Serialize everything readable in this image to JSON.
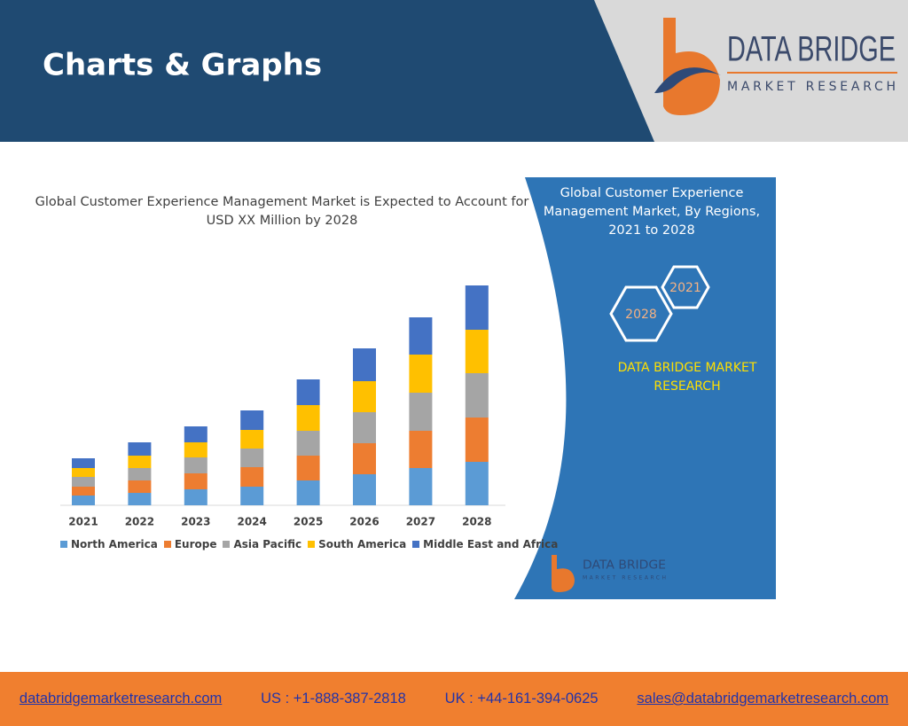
{
  "header": {
    "title": "Charts & Graphs",
    "logo_name": "DATA BRIDGE",
    "logo_tagline": "MARKET RESEARCH"
  },
  "chart_data": {
    "type": "bar",
    "stacked": true,
    "title": "Global Customer Experience Management Market is Expected to Account for USD XX Million by 2028",
    "categories": [
      "2021",
      "2022",
      "2023",
      "2024",
      "2025",
      "2026",
      "2027",
      "2028"
    ],
    "series": [
      {
        "name": "North America",
        "color": "#5b9bd5",
        "values": [
          11,
          14,
          18,
          21,
          28,
          35,
          42,
          49
        ]
      },
      {
        "name": "Europe",
        "color": "#ed7d31",
        "values": [
          10,
          14,
          18,
          22,
          28,
          35,
          42,
          50
        ]
      },
      {
        "name": "Asia Pacific",
        "color": "#a5a5a5",
        "values": [
          11,
          14,
          18,
          21,
          28,
          35,
          43,
          50
        ]
      },
      {
        "name": "South America",
        "color": "#ffc000",
        "values": [
          10,
          14,
          17,
          21,
          29,
          35,
          43,
          49
        ]
      },
      {
        "name": "Middle East and Africa",
        "color": "#4472c4",
        "values": [
          11,
          15,
          18,
          22,
          29,
          37,
          42,
          50
        ]
      }
    ],
    "ylim": [
      0,
      250
    ],
    "legend": "bottom"
  },
  "side_panel": {
    "title": "Global Customer Experience Management Market, By Regions, 2021 to 2028",
    "hex_labels": [
      "2021",
      "2028"
    ],
    "brand": "DATA BRIDGE MARKET RESEARCH",
    "logo_name": "DATA BRIDGE",
    "logo_tagline": "MARKET RESEARCH"
  },
  "footer": {
    "website": "databridgemarketresearch.com",
    "us": "US : +1-888-387-2818",
    "uk": "UK : +44-161-394-0625",
    "email": "sales@databridgemarketresearch.com"
  }
}
